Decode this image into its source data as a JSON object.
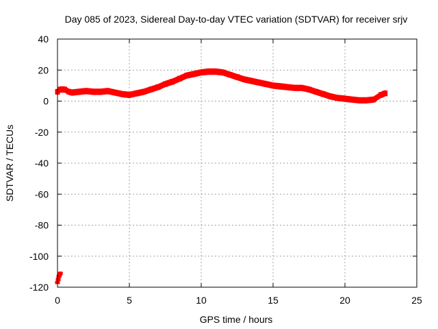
{
  "chart_data": {
    "type": "scatter",
    "title": "Day 085 of 2023, Sidereal Day-to-day VTEC variation (SDTVAR) for receiver srjv",
    "xlabel": "GPS time / hours",
    "ylabel": "SDTVAR / TECUs",
    "xlim": [
      0,
      25
    ],
    "ylim": [
      -120,
      40
    ],
    "xticks": [
      0,
      5,
      10,
      15,
      20,
      25
    ],
    "yticks": [
      -120,
      -100,
      -80,
      -60,
      -40,
      -20,
      0,
      20,
      40
    ],
    "grid": true,
    "legend": "none",
    "series": [
      {
        "name": "SDTVAR",
        "color": "#ff0000",
        "band_halfwidth": 1.8,
        "x": [
          0.0,
          0.2,
          0.5,
          0.8,
          1.0,
          1.5,
          2.0,
          2.5,
          3.0,
          3.5,
          4.0,
          4.5,
          5.0,
          5.5,
          6.0,
          6.5,
          7.0,
          7.5,
          8.0,
          8.5,
          9.0,
          9.5,
          10.0,
          10.5,
          11.0,
          11.5,
          12.0,
          12.5,
          13.0,
          13.5,
          14.0,
          14.5,
          15.0,
          15.5,
          16.0,
          16.5,
          17.0,
          17.5,
          18.0,
          18.5,
          19.0,
          19.5,
          20.0,
          20.5,
          21.0,
          21.5,
          22.0,
          22.5,
          22.8
        ],
        "y": [
          6.0,
          7.5,
          7.5,
          6.0,
          5.5,
          6.0,
          6.5,
          6.0,
          6.0,
          6.5,
          5.5,
          4.5,
          4.0,
          5.0,
          6.0,
          7.5,
          9.0,
          11.0,
          12.5,
          14.5,
          16.5,
          17.5,
          18.5,
          19.0,
          19.0,
          18.5,
          17.0,
          15.5,
          14.0,
          13.0,
          12.0,
          11.0,
          10.0,
          9.5,
          9.0,
          8.5,
          8.5,
          7.5,
          6.0,
          4.5,
          3.0,
          2.0,
          1.5,
          1.0,
          0.5,
          0.5,
          1.0,
          4.0,
          5.0
        ]
      },
      {
        "name": "SDTVAR early outliers",
        "color": "#ff0000",
        "band_halfwidth": 1.0,
        "x": [
          0.0,
          0.05,
          0.1,
          0.15,
          0.2
        ],
        "y": [
          -117,
          -115,
          -113,
          -112,
          -111
        ]
      }
    ]
  }
}
